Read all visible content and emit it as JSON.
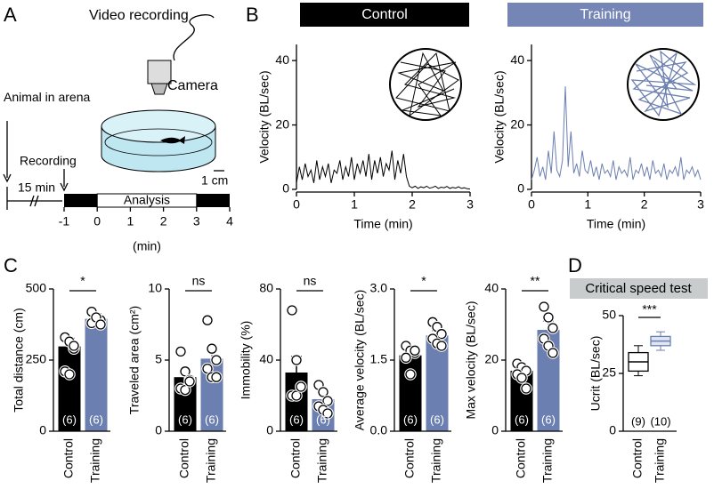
{
  "panel_labels": [
    "A",
    "B",
    "C",
    "D"
  ],
  "setup": {
    "video": "Video recording",
    "camera": "Camera",
    "animal": "Animal in arena",
    "recording": "Recording",
    "wait": "15 min",
    "analysis": "Analysis",
    "scale": "1 cm",
    "unit": "(min)",
    "xlim": [
      -1,
      4
    ],
    "xticks": [
      -1,
      0,
      1,
      2,
      3,
      4
    ]
  },
  "chart_data": [
    {
      "type": "line",
      "title": "Control",
      "color": "#000000",
      "header_color": "#000000",
      "ylabel": "Velocity (BL/sec)",
      "xlabel": "Time (min)",
      "xlim": [
        0,
        3
      ],
      "xticks": [
        0,
        1,
        2,
        3
      ],
      "ylim": [
        0,
        45
      ],
      "yticks": [
        0,
        20,
        40
      ],
      "x": [
        0,
        0.05,
        0.1,
        0.15,
        0.2,
        0.25,
        0.3,
        0.35,
        0.4,
        0.45,
        0.5,
        0.55,
        0.6,
        0.65,
        0.7,
        0.75,
        0.8,
        0.85,
        0.9,
        0.95,
        1,
        1.05,
        1.1,
        1.15,
        1.2,
        1.25,
        1.3,
        1.35,
        1.4,
        1.45,
        1.5,
        1.55,
        1.6,
        1.65,
        1.7,
        1.75,
        1.8,
        1.85,
        1.9,
        1.95,
        2,
        2.05,
        2.1,
        2.15,
        2.2,
        2.25,
        2.3,
        2.35,
        2.4,
        2.45,
        2.5,
        2.55,
        2.6,
        2.65,
        2.7,
        2.75,
        2.8,
        2.85,
        2.9,
        2.95,
        3
      ],
      "values": [
        2,
        7,
        3,
        8,
        4,
        6,
        2,
        9,
        3,
        7,
        4,
        8,
        2,
        6,
        5,
        9,
        3,
        7,
        4,
        10,
        3,
        8,
        5,
        9,
        4,
        11,
        3,
        9,
        5,
        10,
        4,
        8,
        6,
        12,
        3,
        9,
        5,
        11,
        4,
        1,
        0.5,
        1,
        0.3,
        0.8,
        0.5,
        1,
        0.4,
        0.6,
        1,
        0.3,
        0.7,
        0.5,
        0.9,
        0.3,
        0.6,
        0.4,
        0.8,
        0.3,
        0.5,
        0.2,
        0.1
      ]
    },
    {
      "type": "line",
      "title": "Training",
      "color": "#6b7fb0",
      "header_color": "#7585b5",
      "ylabel": "Velocity (BL/sec)",
      "xlabel": "Time (min)",
      "xlim": [
        0,
        3
      ],
      "xticks": [
        0,
        1,
        2,
        3
      ],
      "ylim": [
        0,
        45
      ],
      "yticks": [
        0,
        20,
        40
      ],
      "x": [
        0,
        0.05,
        0.1,
        0.15,
        0.2,
        0.25,
        0.3,
        0.35,
        0.4,
        0.45,
        0.5,
        0.55,
        0.6,
        0.65,
        0.7,
        0.75,
        0.8,
        0.85,
        0.9,
        0.95,
        1,
        1.05,
        1.1,
        1.15,
        1.2,
        1.25,
        1.3,
        1.35,
        1.4,
        1.45,
        1.5,
        1.55,
        1.6,
        1.65,
        1.7,
        1.75,
        1.8,
        1.85,
        1.9,
        1.95,
        2,
        2.05,
        2.1,
        2.15,
        2.2,
        2.25,
        2.3,
        2.35,
        2.4,
        2.45,
        2.5,
        2.55,
        2.6,
        2.65,
        2.7,
        2.75,
        2.8,
        2.85,
        2.9,
        2.95,
        3
      ],
      "values": [
        3,
        6,
        10,
        4,
        7,
        3,
        12,
        5,
        18,
        6,
        4,
        9,
        32,
        7,
        18,
        5,
        8,
        4,
        12,
        6,
        5,
        9,
        4,
        7,
        3,
        8,
        5,
        6,
        4,
        9,
        3,
        7,
        5,
        6,
        4,
        10,
        3,
        6,
        5,
        8,
        4,
        7,
        3,
        9,
        5,
        6,
        4,
        8,
        3,
        6,
        5,
        7,
        4,
        10,
        3,
        6,
        5,
        7,
        4,
        6,
        3
      ]
    },
    {
      "type": "bar",
      "categories": [
        "Control",
        "Training"
      ],
      "colors": [
        "#000000",
        "#6b7fb0"
      ],
      "ylabel": "Total distance (cm)",
      "ylim": [
        0,
        500
      ],
      "yticks": [
        0,
        250,
        500
      ],
      "values": [
        298,
        395
      ],
      "errors": [
        28,
        18
      ],
      "points": [
        [
          330,
          315,
          290,
          210,
          200,
          300
        ],
        [
          420,
          400,
          390,
          380,
          400,
          375
        ]
      ],
      "n_labels": [
        "(6)",
        "(6)"
      ],
      "significance": "*"
    },
    {
      "type": "bar",
      "categories": [
        "Control",
        "Training"
      ],
      "colors": [
        "#000000",
        "#6b7fb0"
      ],
      "ylabel": "Traveled area (cm²)",
      "ylim": [
        0,
        10
      ],
      "yticks": [
        0,
        5,
        10
      ],
      "values": [
        3.8,
        5.1
      ],
      "errors": [
        0.4,
        0.6
      ],
      "points": [
        [
          5.6,
          4.2,
          3.6,
          3.0,
          2.9,
          3.5
        ],
        [
          7.8,
          5.8,
          5.0,
          4.4,
          3.8,
          3.8
        ]
      ],
      "n_labels": [
        "(6)",
        "(6)"
      ],
      "significance": "ns"
    },
    {
      "type": "bar",
      "categories": [
        "Control",
        "Training"
      ],
      "colors": [
        "#000000",
        "#6b7fb0"
      ],
      "ylabel": "Immobility (%)",
      "ylim": [
        0,
        80
      ],
      "yticks": [
        0,
        40,
        80
      ],
      "values": [
        33,
        18
      ],
      "errors": [
        9,
        3.5
      ],
      "points": [
        [
          68,
          40,
          25,
          20,
          20,
          25
        ],
        [
          26,
          22,
          17,
          14,
          12,
          10
        ]
      ],
      "n_labels": [
        "(6)",
        "(6)"
      ],
      "significance": "ns"
    },
    {
      "type": "bar",
      "categories": [
        "Control",
        "Training"
      ],
      "colors": [
        "#000000",
        "#6b7fb0"
      ],
      "ylabel": "Average velocity (BL/sec)",
      "ylim": [
        0,
        3
      ],
      "yticks": [
        {
          "value": 0,
          "label": "0.0"
        },
        1.5,
        {
          "value": 3,
          "label": "3.0"
        }
      ],
      "values": [
        1.6,
        2.02
      ],
      "errors": [
        0.15,
        0.1
      ],
      "points": [
        [
          1.8,
          1.7,
          1.65,
          1.55,
          1.2,
          1.7
        ],
        [
          2.3,
          2.2,
          2.05,
          1.95,
          1.85,
          1.8
        ]
      ],
      "n_labels": [
        "(6)",
        "(6)"
      ],
      "significance": "*"
    },
    {
      "type": "bar",
      "categories": [
        "Control",
        "Training"
      ],
      "colors": [
        "#000000",
        "#6b7fb0"
      ],
      "ylabel": "Max velocity (BL/sec)",
      "ylim": [
        0,
        40
      ],
      "yticks": [
        0,
        20,
        40
      ],
      "values": [
        17,
        28.5
      ],
      "errors": [
        1.3,
        2.5
      ],
      "points": [
        [
          19,
          18,
          17,
          16,
          15,
          12
        ],
        [
          35,
          32,
          29,
          26,
          24,
          22
        ]
      ],
      "n_labels": [
        "(6)",
        "(6)"
      ],
      "significance": "**"
    },
    {
      "type": "box",
      "title": "Critical speed test",
      "categories": [
        "Control",
        "Training"
      ],
      "colors": [
        "#000000",
        "#6b7fb0"
      ],
      "ylabel": "Ucrit (BL/sec)",
      "ylim": [
        0,
        50
      ],
      "yticks": [
        0,
        25,
        50
      ],
      "boxes": [
        {
          "min": 24,
          "q1": 26,
          "median": 30,
          "q3": 34,
          "max": 37
        },
        {
          "min": 35,
          "q1": 37,
          "median": 39,
          "q3": 41,
          "max": 43
        }
      ],
      "n_labels": [
        "(9)",
        "(10)"
      ],
      "significance": "***"
    }
  ]
}
